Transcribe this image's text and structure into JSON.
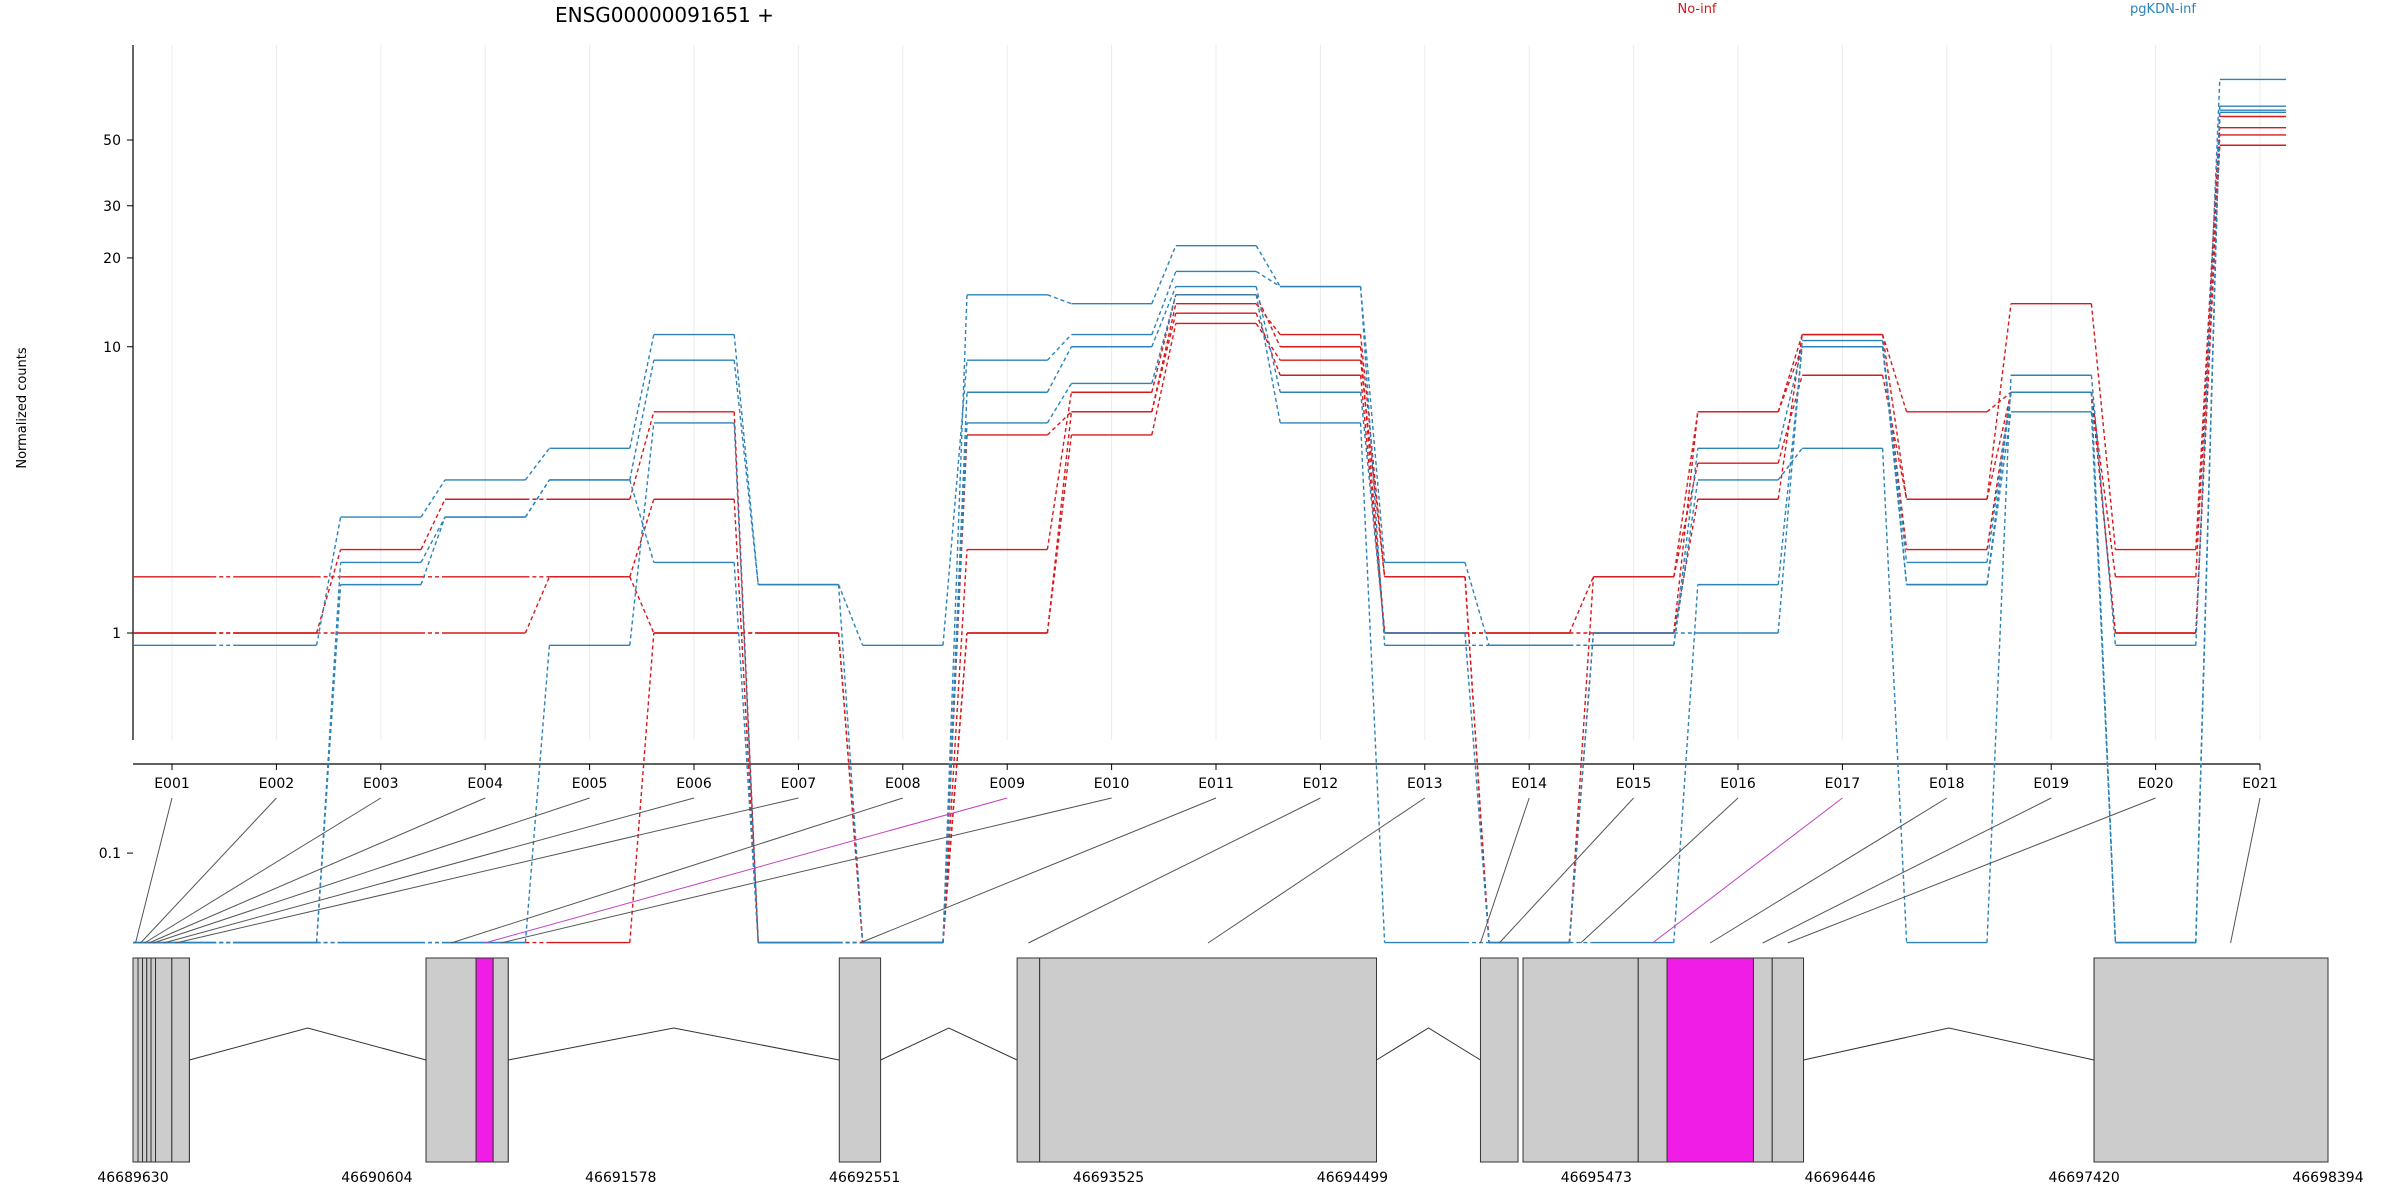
{
  "chart_data": {
    "type": "line",
    "title": "ENSG00000091651 +",
    "ylabel": "Normalized counts",
    "xlabel": "",
    "y_scale": "log(x+0.1)",
    "y_ticks": [
      0.1,
      1,
      10,
      20,
      30,
      50
    ],
    "y_tick_labels": [
      "0.1",
      "1",
      "10",
      "20",
      "30",
      "50"
    ],
    "grid": true,
    "legend_position": "top",
    "categories": [
      "E001",
      "E002",
      "E003",
      "E004",
      "E005",
      "E006",
      "E007",
      "E008",
      "E009",
      "E010",
      "E011",
      "E012",
      "E013",
      "E014",
      "E015",
      "E016",
      "E017",
      "E018",
      "E019",
      "E020",
      "E021"
    ],
    "series": [
      {
        "name": "No-inf",
        "color": "#d7191c",
        "samples": [
          [
            1.6,
            1.6,
            1.6,
            1.6,
            1.6,
            1,
            1,
            0,
            1,
            6,
            14,
            11,
            1.6,
            0,
            1,
            6,
            11,
            3,
            14,
            2,
            60
          ],
          [
            1,
            1,
            2,
            3,
            3,
            6,
            0,
            0,
            2,
            7,
            15,
            10,
            1,
            1,
            1.6,
            4,
            8,
            3,
            7,
            1.6,
            55
          ],
          [
            1,
            1,
            1,
            1,
            1.6,
            3,
            0,
            0,
            5,
            6,
            13,
            8,
            1,
            1,
            1,
            3,
            11,
            6,
            7,
            1,
            52
          ],
          [
            0,
            0,
            0,
            0,
            0,
            1,
            1,
            0,
            1,
            5,
            12,
            9,
            1.6,
            0,
            1.6,
            6,
            10,
            2,
            7,
            1,
            48
          ]
        ]
      },
      {
        "name": "pgKDN-inf",
        "color": "#2b83ba",
        "samples": [
          [
            0.9,
            0.9,
            2.6,
            3.5,
            4.5,
            11,
            1.5,
            0,
            15,
            14,
            22,
            16,
            1.8,
            0.9,
            0.9,
            3.5,
            4.5,
            0,
            8,
            0.9,
            80
          ],
          [
            0,
            0,
            1.5,
            2.6,
            3.5,
            9,
            1.5,
            0.9,
            9,
            11,
            18,
            16,
            0.9,
            0.9,
            0.9,
            4.5,
            10,
            1.5,
            7,
            0,
            65
          ],
          [
            0,
            0,
            0,
            0,
            0.9,
            5.5,
            0,
            0,
            7,
            10,
            16,
            7,
            1,
            0,
            0,
            1.5,
            10,
            1.8,
            7,
            0,
            62
          ],
          [
            0,
            0,
            1.8,
            2.6,
            3.5,
            1.8,
            0,
            0,
            5.5,
            7.5,
            15,
            5.5,
            0,
            0,
            1,
            1,
            10.5,
            1.5,
            6,
            0,
            63
          ]
        ]
      }
    ],
    "genomic_axis": {
      "tick_labels": [
        "46689630",
        "46690604",
        "46691578",
        "46692551",
        "46693525",
        "46694499",
        "46695473",
        "46696446",
        "46697420",
        "46698394"
      ],
      "range": [
        46689630,
        46698394
      ],
      "exons": [
        {
          "id": "E001",
          "start": 46689630,
          "end": 46689650,
          "highlight": false
        },
        {
          "id": "E002",
          "start": 46689650,
          "end": 46689668,
          "highlight": false
        },
        {
          "id": "E003",
          "start": 46689668,
          "end": 46689685,
          "highlight": false
        },
        {
          "id": "E004",
          "start": 46689685,
          "end": 46689702,
          "highlight": false
        },
        {
          "id": "E005",
          "start": 46689702,
          "end": 46689720,
          "highlight": false
        },
        {
          "id": "E006",
          "start": 46689720,
          "end": 46689785,
          "highlight": false
        },
        {
          "id": "E007",
          "start": 46689785,
          "end": 46689855,
          "highlight": false
        },
        {
          "id": "E008",
          "start": 46690800,
          "end": 46691000,
          "highlight": false
        },
        {
          "id": "E009",
          "start": 46691000,
          "end": 46691068,
          "highlight": true
        },
        {
          "id": "E010",
          "start": 46691068,
          "end": 46691128,
          "highlight": false
        },
        {
          "id": "E011",
          "start": 46692450,
          "end": 46692615,
          "highlight": false
        },
        {
          "id": "E012",
          "start": 46693160,
          "end": 46693250,
          "highlight": false
        },
        {
          "id": "E013",
          "start": 46693250,
          "end": 46694595,
          "highlight": false
        },
        {
          "id": "E014",
          "start": 46695010,
          "end": 46695160,
          "highlight": false
        },
        {
          "id": "E015",
          "start": 46695180,
          "end": 46695640,
          "highlight": false
        },
        {
          "id": "E016",
          "start": 46695640,
          "end": 46695755,
          "highlight": false
        },
        {
          "id": "E017",
          "start": 46695755,
          "end": 46696100,
          "highlight": true
        },
        {
          "id": "E018",
          "start": 46696100,
          "end": 46696175,
          "highlight": false
        },
        {
          "id": "E019",
          "start": 46696175,
          "end": 46696300,
          "highlight": false
        },
        {
          "id": "E020",
          "start": 46697460,
          "end": 46698394,
          "highlight": false
        },
        {
          "id": "E021",
          "start": 46697460,
          "end": 46698394,
          "highlight": false
        }
      ],
      "anchors": [
        {
          "exon": "E001",
          "pos": 46689640
        },
        {
          "exon": "E002",
          "pos": 46689660
        },
        {
          "exon": "E003",
          "pos": 46689676
        },
        {
          "exon": "E004",
          "pos": 46689693
        },
        {
          "exon": "E005",
          "pos": 46689711
        },
        {
          "exon": "E006",
          "pos": 46689752
        },
        {
          "exon": "E007",
          "pos": 46689800
        },
        {
          "exon": "E008",
          "pos": 46690900
        },
        {
          "exon": "E009",
          "pos": 46691034
        },
        {
          "exon": "E010",
          "pos": 46691098
        },
        {
          "exon": "E011",
          "pos": 46692532
        },
        {
          "exon": "E012",
          "pos": 46693205
        },
        {
          "exon": "E013",
          "pos": 46693922
        },
        {
          "exon": "E014",
          "pos": 46695010
        },
        {
          "exon": "E015",
          "pos": 46695085
        },
        {
          "exon": "E016",
          "pos": 46695410
        },
        {
          "exon": "E017",
          "pos": 46695697
        },
        {
          "exon": "E018",
          "pos": 46695927
        },
        {
          "exon": "E019",
          "pos": 46696137
        },
        {
          "exon": "E020",
          "pos": 46696237
        },
        {
          "exon": "E021",
          "pos": 46698005
        }
      ],
      "introns": [
        {
          "start": 46689855,
          "end": 46690800
        },
        {
          "start": 46691128,
          "end": 46692450
        },
        {
          "start": 46692615,
          "end": 46693160
        },
        {
          "start": 46694595,
          "end": 46695010
        },
        {
          "start": 46696300,
          "end": 46697460
        }
      ]
    }
  }
}
